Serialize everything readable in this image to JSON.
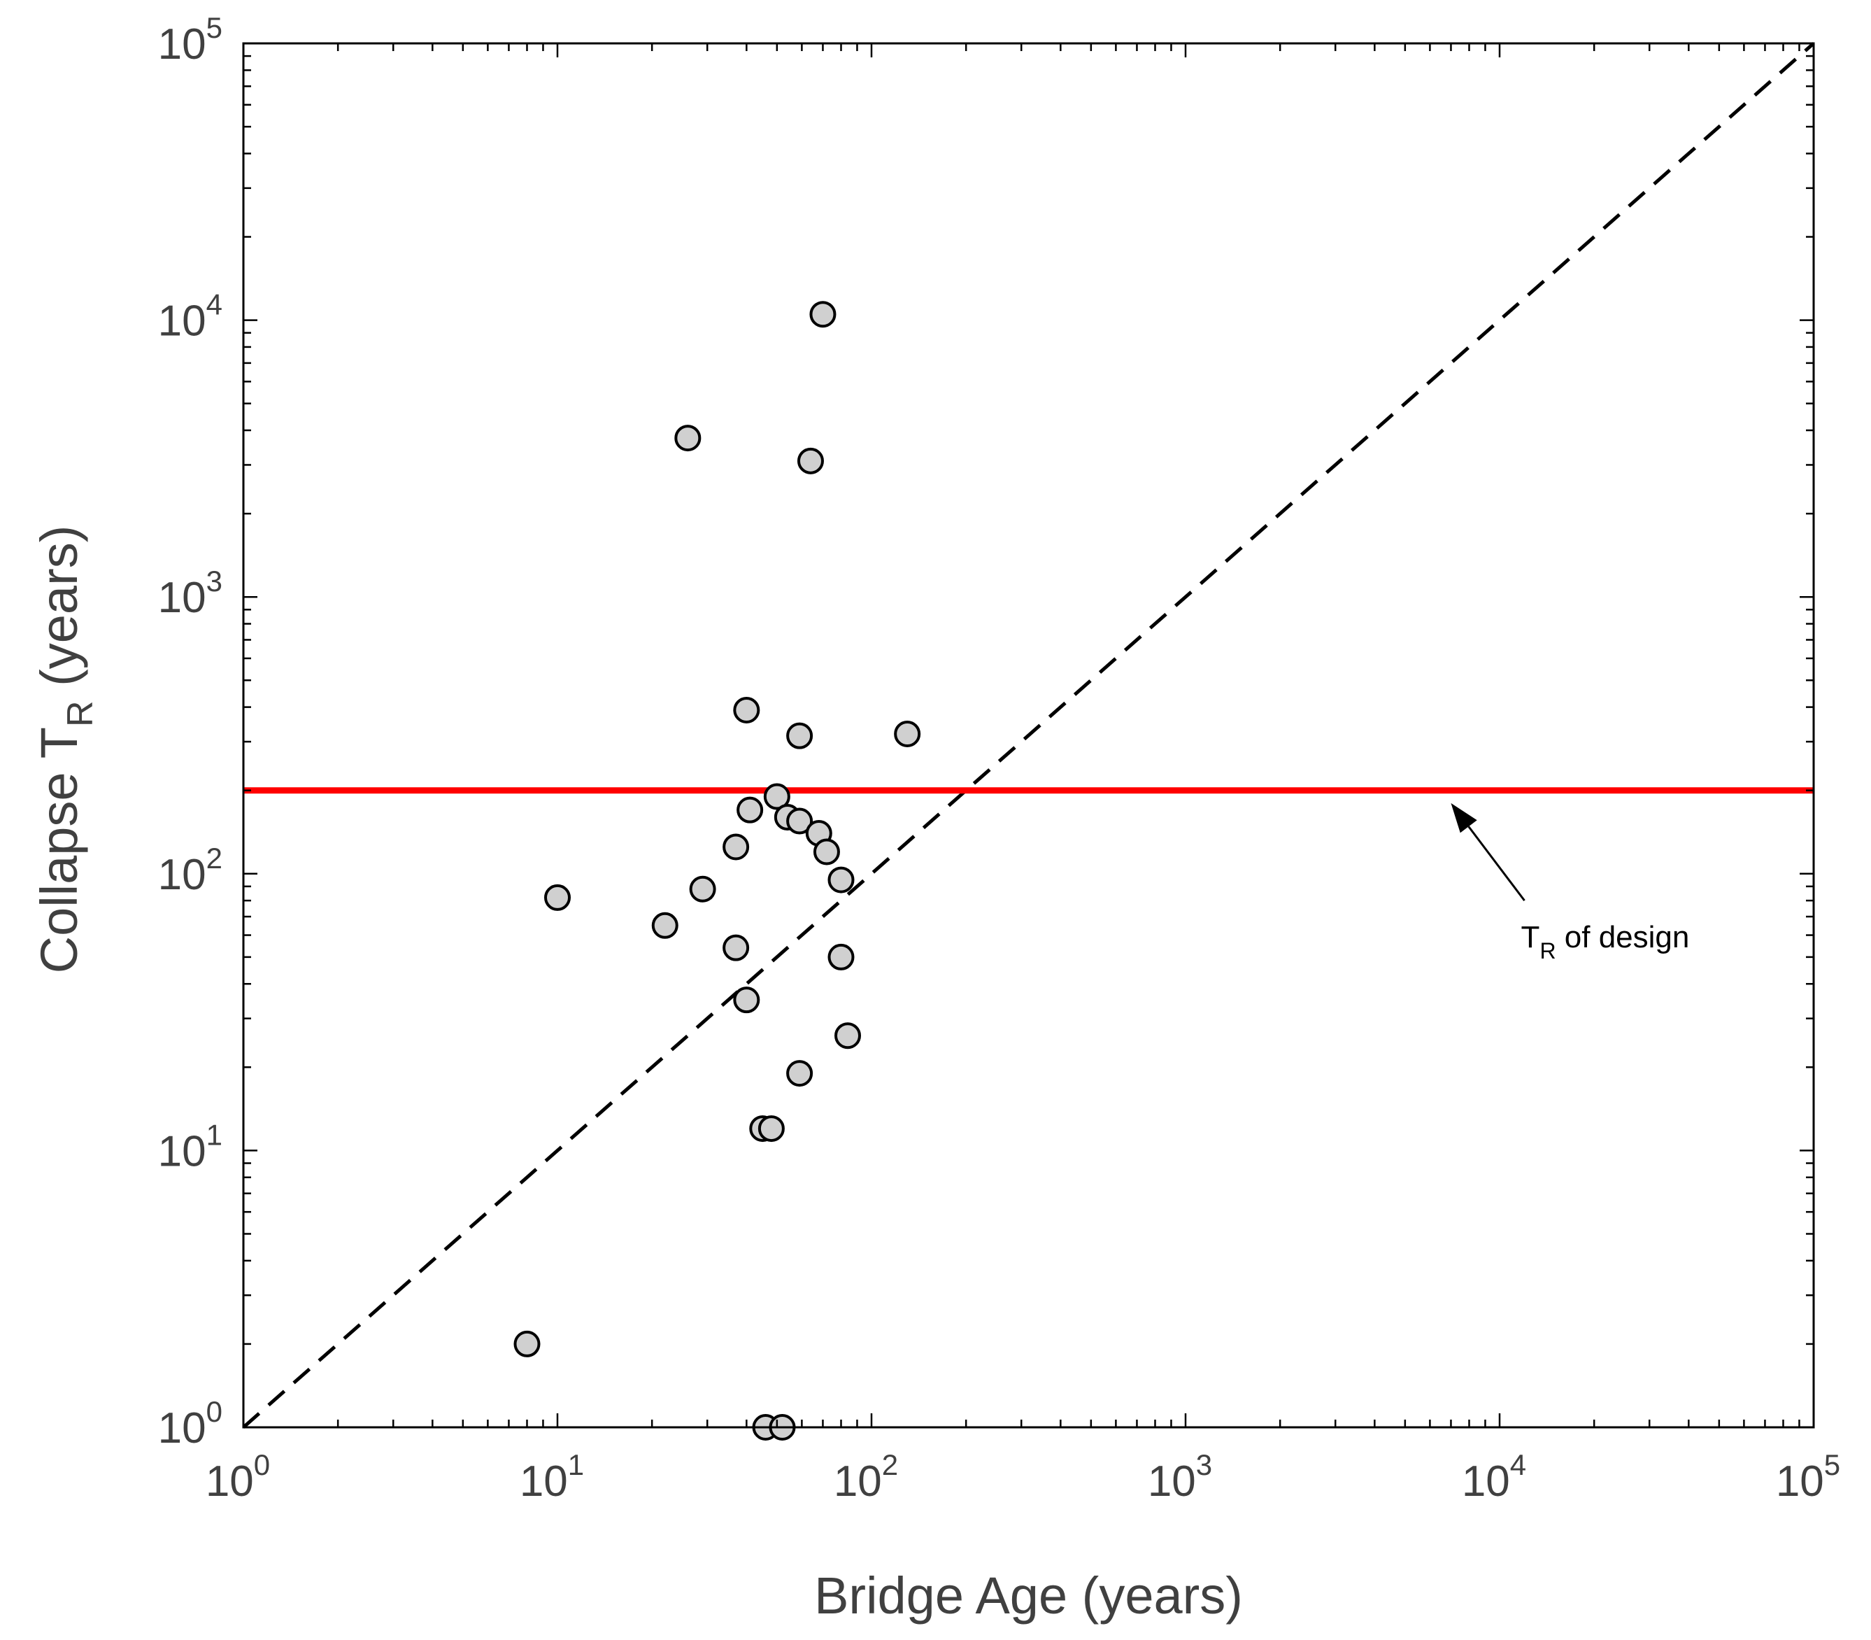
{
  "chart_data": {
    "type": "scatter",
    "title": "",
    "xlabel": "Bridge Age  (years)",
    "ylabel": {
      "main": "Collapse  T",
      "sub": "R",
      "suffix": "  (years)"
    },
    "xscale": "log",
    "yscale": "log",
    "xlim": [
      1,
      100000
    ],
    "ylim": [
      1,
      100000
    ],
    "grid": false,
    "x_ticks": [
      {
        "base": "10",
        "exp": "0"
      },
      {
        "base": "10",
        "exp": "1"
      },
      {
        "base": "10",
        "exp": "2"
      },
      {
        "base": "10",
        "exp": "3"
      },
      {
        "base": "10",
        "exp": "4"
      },
      {
        "base": "10",
        "exp": "5"
      }
    ],
    "y_ticks": [
      {
        "base": "10",
        "exp": "0"
      },
      {
        "base": "10",
        "exp": "1"
      },
      {
        "base": "10",
        "exp": "2"
      },
      {
        "base": "10",
        "exp": "3"
      },
      {
        "base": "10",
        "exp": "4"
      },
      {
        "base": "10",
        "exp": "5"
      }
    ],
    "series": [
      {
        "marker": "circle",
        "color": "#d0d0d0",
        "edgecolor": "#000000",
        "points": [
          {
            "x": 8,
            "y": 2
          },
          {
            "x": 10,
            "y": 82
          },
          {
            "x": 22,
            "y": 65
          },
          {
            "x": 26,
            "y": 3750
          },
          {
            "x": 29,
            "y": 88
          },
          {
            "x": 37,
            "y": 125
          },
          {
            "x": 37,
            "y": 54
          },
          {
            "x": 40,
            "y": 390
          },
          {
            "x": 40,
            "y": 35
          },
          {
            "x": 41,
            "y": 170
          },
          {
            "x": 45,
            "y": 12
          },
          {
            "x": 46,
            "y": 1
          },
          {
            "x": 48,
            "y": 12
          },
          {
            "x": 50,
            "y": 190
          },
          {
            "x": 52,
            "y": 1
          },
          {
            "x": 54,
            "y": 160
          },
          {
            "x": 59,
            "y": 155
          },
          {
            "x": 59,
            "y": 315
          },
          {
            "x": 59,
            "y": 19
          },
          {
            "x": 64,
            "y": 3100
          },
          {
            "x": 68,
            "y": 140
          },
          {
            "x": 70,
            "y": 10500
          },
          {
            "x": 72,
            "y": 120
          },
          {
            "x": 80,
            "y": 95
          },
          {
            "x": 80,
            "y": 50
          },
          {
            "x": 84,
            "y": 26
          },
          {
            "x": 130,
            "y": 320
          }
        ]
      }
    ],
    "reference_lines": [
      {
        "kind": "identity",
        "style": "dashed",
        "color": "#000000",
        "from": [
          1,
          1
        ],
        "to": [
          100000,
          100000
        ]
      },
      {
        "kind": "horizontal",
        "style": "solid",
        "color": "#ff0000",
        "y": 200
      }
    ],
    "annotation": {
      "text_main": "T",
      "text_sub": "R",
      "text_suffix": " of design",
      "arrow_target": {
        "x": 7000,
        "y": 180
      },
      "arrow_tail": {
        "x": 12000,
        "y": 80
      }
    }
  }
}
